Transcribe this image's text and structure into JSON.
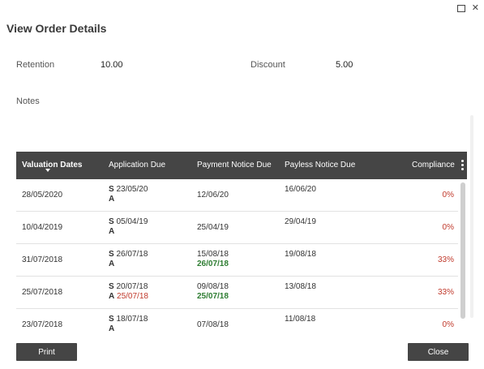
{
  "dialog": {
    "title": "View Order Details",
    "retention_label": "Retention",
    "retention_value": "10.00",
    "discount_label": "Discount",
    "discount_value": "5.00",
    "notes_label": "Notes"
  },
  "window_controls": [
    "maximize-icon",
    "close-icon"
  ],
  "grid": {
    "columns": [
      "Valuation Dates",
      "Application Due",
      "Payment Notice Due",
      "Payless Notice Due",
      "Compliance"
    ],
    "rows": [
      {
        "valuation": "28/05/2020",
        "app_s": "23/05/20",
        "app_a": "",
        "payment": "12/06/20",
        "payment_actual": "",
        "payless": "16/06/20",
        "compliance": "0%"
      },
      {
        "valuation": "10/04/2019",
        "app_s": "05/04/19",
        "app_a": "",
        "payment": "25/04/19",
        "payment_actual": "",
        "payless": "29/04/19",
        "compliance": "0%"
      },
      {
        "valuation": "31/07/2018",
        "app_s": "26/07/18",
        "app_a": "",
        "payment": "15/08/18",
        "payment_actual": "26/07/18",
        "payless": "19/08/18",
        "compliance": "33%"
      },
      {
        "valuation": "25/07/2018",
        "app_s": "20/07/18",
        "app_a": "25/07/18",
        "payment": "09/08/18",
        "payment_actual": "25/07/18",
        "payless": "13/08/18",
        "compliance": "33%"
      },
      {
        "valuation": "23/07/2018",
        "app_s": "18/07/18",
        "app_a": "",
        "payment": "07/08/18",
        "payment_actual": "",
        "payless": "11/08/18",
        "compliance": "0%"
      }
    ],
    "s_marker": "S",
    "a_marker": "A"
  },
  "colors": {
    "header_bg": "#454545",
    "red": "#c0392b",
    "green": "#2e7d32"
  },
  "buttons": {
    "print": "Print",
    "close": "Close"
  }
}
